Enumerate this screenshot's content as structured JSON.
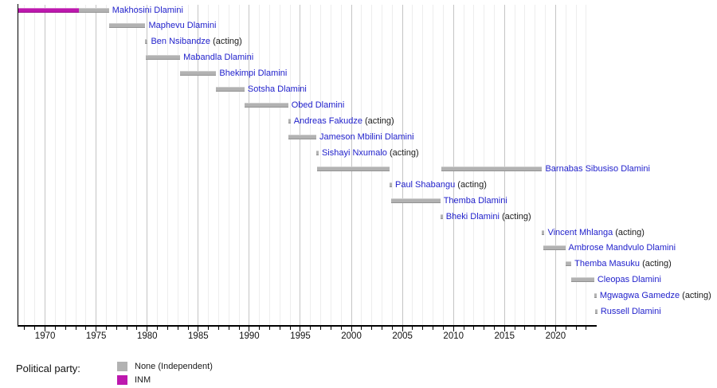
{
  "chart_data": {
    "type": "timeline",
    "acting_suffix": "(acting)",
    "x_axis": {
      "min": 1967.3,
      "max": 2023.95,
      "tick_step_years": 1,
      "labeled_ticks": [
        1970,
        1975,
        1980,
        1985,
        1990,
        1995,
        2000,
        2005,
        2010,
        2015,
        2020
      ]
    },
    "legend": {
      "title": "Political party:",
      "items": [
        {
          "label": "None (Independent)",
          "color": "#b2b2b2"
        },
        {
          "label": "INM",
          "color": "#bd18ae"
        }
      ]
    },
    "colors": {
      "grid_minor": "#ededed",
      "grid_major": "#c5c5c5",
      "axis": "#000000",
      "name_link": "#2222cc",
      "acting_text": "#1a1a1a"
    },
    "rows": [
      {
        "name": "Makhosini Dlamini",
        "acting": false,
        "segments": [
          {
            "party": "INM",
            "start": 1967.37,
            "end": 1973.28
          },
          {
            "party": "None (Independent)",
            "start": 1973.28,
            "end": 1976.25
          }
        ]
      },
      {
        "name": "Maphevu Dlamini",
        "acting": false,
        "segments": [
          {
            "party": "None (Independent)",
            "start": 1976.25,
            "end": 1979.82
          }
        ]
      },
      {
        "name": "Ben Nsibandze",
        "acting": true,
        "segments": [
          {
            "party": "None (Independent)",
            "start": 1979.82,
            "end": 1979.9
          }
        ]
      },
      {
        "name": "Mabandla Dlamini",
        "acting": false,
        "segments": [
          {
            "party": "None (Independent)",
            "start": 1979.9,
            "end": 1983.23
          }
        ]
      },
      {
        "name": "Bhekimpi Dlamini",
        "acting": false,
        "segments": [
          {
            "party": "None (Independent)",
            "start": 1983.23,
            "end": 1986.76
          }
        ]
      },
      {
        "name": "Sotsha Dlamini",
        "acting": false,
        "segments": [
          {
            "party": "None (Independent)",
            "start": 1986.76,
            "end": 1989.53
          }
        ]
      },
      {
        "name": "Obed Dlamini",
        "acting": false,
        "segments": [
          {
            "party": "None (Independent)",
            "start": 1989.53,
            "end": 1993.81
          }
        ]
      },
      {
        "name": "Andreas Fakudze",
        "acting": true,
        "segments": [
          {
            "party": "None (Independent)",
            "start": 1993.81,
            "end": 1993.85
          }
        ]
      },
      {
        "name": "Jameson Mbilini Dlamini",
        "acting": false,
        "segments": [
          {
            "party": "None (Independent)",
            "start": 1993.85,
            "end": 1996.56
          }
        ]
      },
      {
        "name": "Sishayi Nxumalo",
        "acting": true,
        "segments": [
          {
            "party": "None (Independent)",
            "start": 1996.56,
            "end": 1996.62
          }
        ]
      },
      {
        "name": "Barnabas Sibusiso Dlamini",
        "acting": false,
        "segments": [
          {
            "party": "None (Independent)",
            "start": 1996.62,
            "end": 2003.74
          },
          {
            "party": "None (Independent)",
            "start": 2008.79,
            "end": 2018.68
          }
        ]
      },
      {
        "name": "Paul Shabangu",
        "acting": true,
        "segments": [
          {
            "party": "None (Independent)",
            "start": 2003.74,
            "end": 2003.87
          }
        ]
      },
      {
        "name": "Themba Dlamini",
        "acting": false,
        "segments": [
          {
            "party": "None (Independent)",
            "start": 2003.87,
            "end": 2008.71
          }
        ]
      },
      {
        "name": "Bheki Dlamini",
        "acting": true,
        "segments": [
          {
            "party": "None (Independent)",
            "start": 2008.71,
            "end": 2008.79
          }
        ]
      },
      {
        "name": "Vincent Mhlanga",
        "acting": true,
        "segments": [
          {
            "party": "None (Independent)",
            "start": 2018.68,
            "end": 2018.82
          }
        ]
      },
      {
        "name": "Ambrose Mandvulo Dlamini",
        "acting": false,
        "segments": [
          {
            "party": "None (Independent)",
            "start": 2018.82,
            "end": 2020.95
          }
        ]
      },
      {
        "name": "Themba Masuku",
        "acting": true,
        "segments": [
          {
            "party": "None (Independent)",
            "start": 2020.95,
            "end": 2021.54
          }
        ]
      },
      {
        "name": "Cleopas Dlamini",
        "acting": false,
        "segments": [
          {
            "party": "None (Independent)",
            "start": 2021.54,
            "end": 2023.78
          }
        ]
      },
      {
        "name": "Mgwagwa Gamedze",
        "acting": true,
        "segments": [
          {
            "party": "None (Independent)",
            "start": 2023.78,
            "end": 2023.86
          }
        ]
      },
      {
        "name": "Russell Dlamini",
        "acting": false,
        "segments": [
          {
            "party": "None (Independent)",
            "start": 2023.86,
            "end": 2023.95
          }
        ]
      }
    ]
  }
}
